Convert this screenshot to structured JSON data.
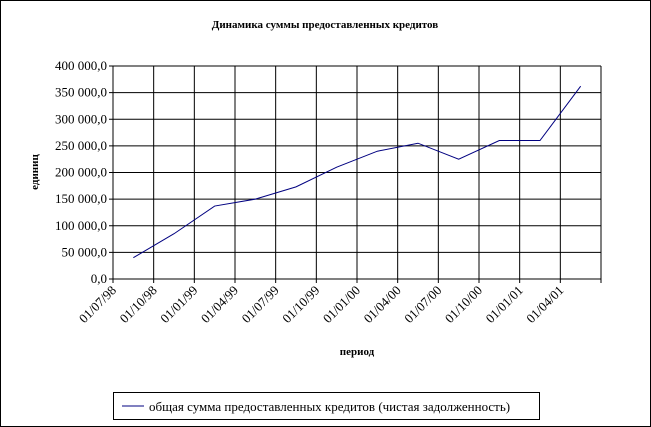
{
  "chart_data": {
    "type": "line",
    "title": "Динамика суммы предоставленных кредитов",
    "x_label": "период",
    "y_label": "единиц",
    "categories": [
      "01/07/98",
      "01/10/98",
      "01/01/99",
      "01/04/99",
      "01/07/99",
      "01/10/99",
      "01/01/00",
      "01/04/00",
      "01/07/00",
      "01/10/00",
      "01/01/01",
      "01/04/01"
    ],
    "series": [
      {
        "name": "общая сумма предоставленных кредитов (чистая задолженность)",
        "color": "#000080",
        "values": [
          40000,
          85000,
          137000,
          150000,
          173000,
          210000,
          240000,
          255000,
          225000,
          260000,
          260000,
          362000
        ]
      }
    ],
    "ylim": [
      0,
      400000
    ],
    "yticks": [
      {
        "value": 0,
        "label": "0,0"
      },
      {
        "value": 50000,
        "label": "50 000,0"
      },
      {
        "value": 100000,
        "label": "100 000,0"
      },
      {
        "value": 150000,
        "label": "150 000,0"
      },
      {
        "value": 200000,
        "label": "200 000,0"
      },
      {
        "value": 250000,
        "label": "250 000,0"
      },
      {
        "value": 300000,
        "label": "300 000,0"
      },
      {
        "value": 350000,
        "label": "350 000,0"
      },
      {
        "value": 400000,
        "label": "400 000,0"
      }
    ],
    "grid": true,
    "legend": "bottom"
  }
}
